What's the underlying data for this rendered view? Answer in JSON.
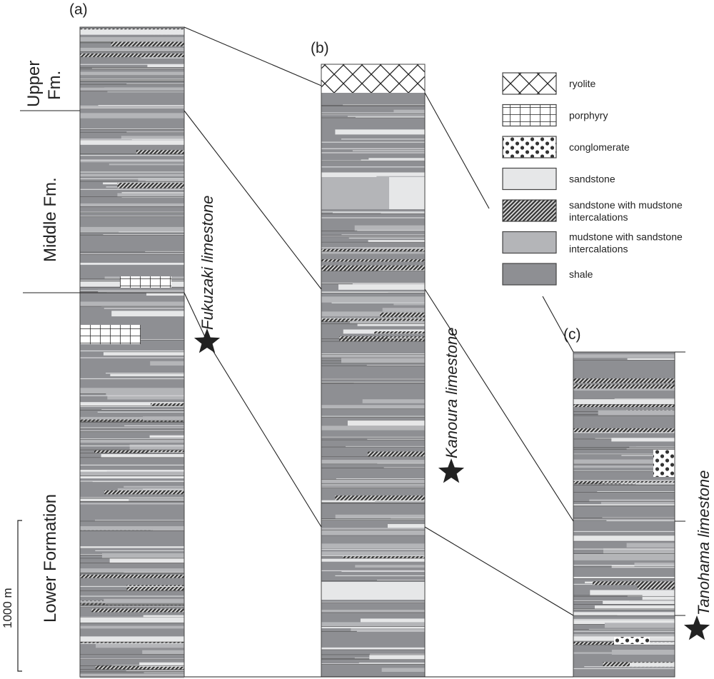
{
  "columns": [
    {
      "label": "(a)"
    },
    {
      "label": "(b)"
    },
    {
      "label": "(c)"
    }
  ],
  "formations": {
    "upper_line1": "Upper",
    "upper_line2": "Fm.",
    "middle": "Middle Fm.",
    "lower": "Lower Formation"
  },
  "scale_bar": {
    "label": "1000 m"
  },
  "limestones": [
    {
      "name": "Fukuzaki limestone"
    },
    {
      "name": "Kanoura limestone"
    },
    {
      "name": "Tanohama limestone"
    }
  ],
  "legend": [
    {
      "pattern": "ryolite",
      "line1": "ryolite",
      "line2": ""
    },
    {
      "pattern": "porphyry",
      "line1": "porphyry",
      "line2": ""
    },
    {
      "pattern": "conglomerate",
      "line1": "conglomerate",
      "line2": ""
    },
    {
      "pattern": "sandstone",
      "line1": "sandstone",
      "line2": ""
    },
    {
      "pattern": "sandmud",
      "line1": "sandstone with mudstone",
      "line2": "intercalations"
    },
    {
      "pattern": "mudsand",
      "line1": "mudstone with sandstone",
      "line2": "intercalations"
    },
    {
      "pattern": "shale",
      "line1": "shale",
      "line2": ""
    }
  ],
  "colors": {
    "shale": "#8e8f93",
    "mudstone": "#b4b5b8",
    "sandstone": "#e6e7e8",
    "line": "#222222"
  }
}
